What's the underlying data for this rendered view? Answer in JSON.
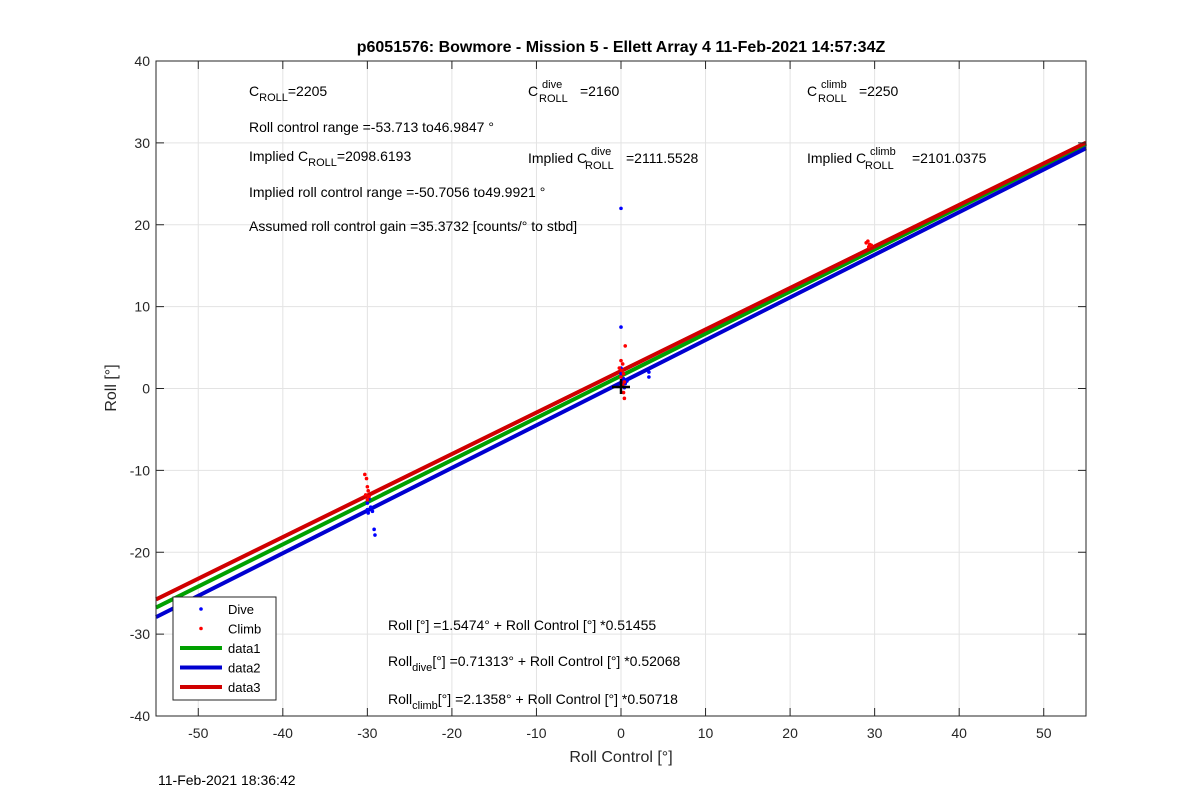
{
  "footer": {
    "timestamp": "11-Feb-2021 18:36:42"
  },
  "chart_data": {
    "type": "scatter",
    "title": "p6051576: Bowmore - Mission 5 - Ellett Array 4 11-Feb-2021 14:57:34Z",
    "xlabel": "Roll Control [°]",
    "ylabel": "Roll [°]",
    "xlim": [
      -55,
      55
    ],
    "ylim": [
      -40,
      40
    ],
    "xticks": [
      -50,
      -40,
      -30,
      -20,
      -10,
      0,
      10,
      20,
      30,
      40,
      50
    ],
    "yticks": [
      -40,
      -30,
      -20,
      -10,
      0,
      10,
      20,
      30,
      40
    ],
    "grid": true,
    "legend_position": "bottom-left",
    "series": [
      {
        "name": "Dive",
        "kind": "points",
        "color": "#0000ff",
        "points": [
          [
            -30.0,
            -14.0
          ],
          [
            -30.0,
            -14.8
          ],
          [
            -29.8,
            -13.5
          ],
          [
            -29.6,
            -14.5
          ],
          [
            -29.4,
            -15.0
          ],
          [
            -29.2,
            -17.2
          ],
          [
            -29.1,
            -17.9
          ],
          [
            -29.9,
            -15.2
          ],
          [
            0.0,
            22.0
          ],
          [
            0.0,
            7.5
          ],
          [
            0.0,
            2.5
          ],
          [
            0.0,
            1.8
          ],
          [
            0.1,
            1.0
          ],
          [
            0.2,
            0.5
          ],
          [
            0.4,
            0.1
          ],
          [
            0.5,
            0.6
          ],
          [
            0.7,
            0.9
          ],
          [
            0.3,
            1.2
          ],
          [
            3.3,
            2.0
          ],
          [
            3.3,
            1.4
          ]
        ]
      },
      {
        "name": "Climb",
        "kind": "points",
        "color": "#ff0000",
        "points": [
          [
            -30.3,
            -10.5
          ],
          [
            -30.1,
            -11.0
          ],
          [
            -30.0,
            -12.0
          ],
          [
            -29.9,
            -12.5
          ],
          [
            -30.2,
            -13.0
          ],
          [
            -29.8,
            -13.2
          ],
          [
            -30.0,
            -13.6
          ],
          [
            0.0,
            3.4
          ],
          [
            0.2,
            3.0
          ],
          [
            -0.2,
            2.5
          ],
          [
            0.1,
            2.2
          ],
          [
            0.3,
            1.8
          ],
          [
            0.0,
            1.4
          ],
          [
            0.4,
            0.8
          ],
          [
            0.5,
            5.2
          ],
          [
            0.2,
            0.4
          ],
          [
            0.3,
            -0.5
          ],
          [
            0.4,
            -1.2
          ],
          [
            29.0,
            17.8
          ],
          [
            29.2,
            18.0
          ],
          [
            29.4,
            17.6
          ],
          [
            29.6,
            17.5
          ],
          [
            29.3,
            17.3
          ]
        ]
      },
      {
        "name": "data1",
        "kind": "line",
        "color": "#00a000",
        "intercept": 1.5474,
        "slope": 0.51455
      },
      {
        "name": "data2",
        "kind": "line",
        "color": "#0000d0",
        "intercept": 0.71313,
        "slope": 0.52068
      },
      {
        "name": "data3",
        "kind": "line",
        "color": "#d00000",
        "intercept": 2.1358,
        "slope": 0.50718
      }
    ],
    "annotations": {
      "c_roll": "=2205",
      "c_dive": "=2160",
      "c_climb": "=2250",
      "range_text": "Roll control range =-53.713 to46.9847 °",
      "implied_c_roll": "=2098.6193",
      "implied_c_dive": "=2111.5528",
      "implied_c_climb": "=2101.0375",
      "implied_range_text": "Implied roll control range =-50.7056 to49.9921 °",
      "gain_text": "Assumed roll control gain =35.3732 [counts/° to stbd]",
      "fit_all": "Roll [°] =1.5474° + Roll Control [°] *0.51455",
      "fit_dive_rest": "[°] =0.71313° + Roll Control [°] *0.52068",
      "fit_climb_rest": "[°] =2.1358° + Roll Control [°] *0.50718",
      "label_c": "C",
      "label_implied": "Implied C",
      "sub_roll": "ROLL",
      "sup_dive": "dive",
      "sup_climb": "climb",
      "label_roll": "Roll",
      "sub_dive": "dive",
      "sub_climb": "climb"
    }
  }
}
